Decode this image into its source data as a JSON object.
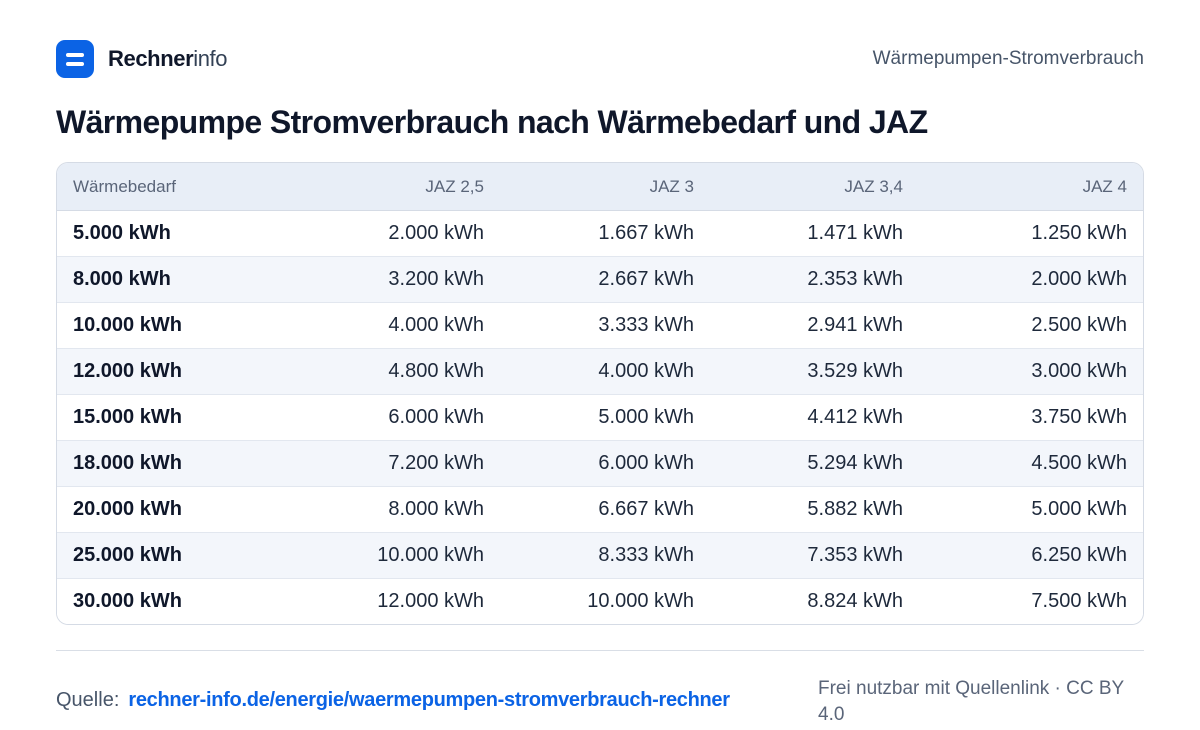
{
  "header": {
    "brand_strong": "Rechner",
    "brand_light": "info",
    "page_label": "Wärmepumpen-Stromverbrauch"
  },
  "title": "Wärmepumpe Stromverbrauch nach Wärmebedarf und JAZ",
  "table": {
    "columns": [
      "Wärmebedarf",
      "JAZ 2,5",
      "JAZ 3",
      "JAZ 3,4",
      "JAZ 4"
    ],
    "rows": [
      [
        "5.000 kWh",
        "2.000 kWh",
        "1.667 kWh",
        "1.471 kWh",
        "1.250 kWh"
      ],
      [
        "8.000 kWh",
        "3.200 kWh",
        "2.667 kWh",
        "2.353 kWh",
        "2.000 kWh"
      ],
      [
        "10.000 kWh",
        "4.000 kWh",
        "3.333 kWh",
        "2.941 kWh",
        "2.500 kWh"
      ],
      [
        "12.000 kWh",
        "4.800 kWh",
        "4.000 kWh",
        "3.529 kWh",
        "3.000 kWh"
      ],
      [
        "15.000 kWh",
        "6.000 kWh",
        "5.000 kWh",
        "4.412 kWh",
        "3.750 kWh"
      ],
      [
        "18.000 kWh",
        "7.200 kWh",
        "6.000 kWh",
        "5.294 kWh",
        "4.500 kWh"
      ],
      [
        "20.000 kWh",
        "8.000 kWh",
        "6.667 kWh",
        "5.882 kWh",
        "5.000 kWh"
      ],
      [
        "25.000 kWh",
        "10.000 kWh",
        "8.333 kWh",
        "7.353 kWh",
        "6.250 kWh"
      ],
      [
        "30.000 kWh",
        "12.000 kWh",
        "10.000 kWh",
        "8.824 kWh",
        "7.500 kWh"
      ]
    ]
  },
  "footer": {
    "source_label": "Quelle:",
    "source_link": "rechner-info.de/energie/waermepumpen-stromverbrauch-rechner",
    "license": "Frei nutzbar mit Quellenlink · CC BY 4.0"
  },
  "colors": {
    "accent": "#0b63e5",
    "header_bg": "#e8eef7",
    "zebra_bg": "#f3f6fb"
  },
  "icons": {
    "logo": "calculator-logo-icon"
  }
}
